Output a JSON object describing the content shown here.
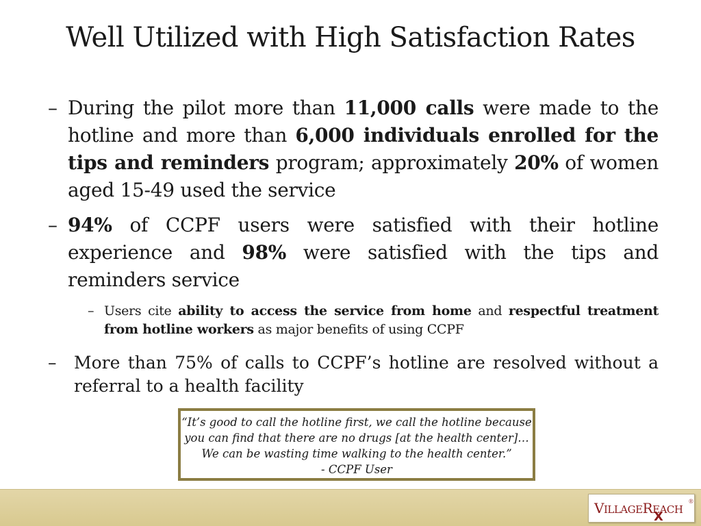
{
  "slide": {
    "title": "Well Utilized with High Satisfaction Rates"
  },
  "bullets": {
    "dash": "–",
    "b1": {
      "t1": "During the pilot more than ",
      "t2": "11,000 calls",
      "t3": " were made to the hotline and more than ",
      "t4": "6,000 individuals enrolled for the tips and reminders",
      "t5": " program; approximately ",
      "t6": "20%",
      "t7": " of women aged 15-49 used the service"
    },
    "b2": {
      "t1": "94%",
      "t2": " of CCPF users were satisfied with their hotline experience and ",
      "t3": "98%",
      "t4": " were satisfied with the tips and reminders service"
    },
    "sub": {
      "t1": "Users cite ",
      "t2": "ability to access the service from home",
      "t3": " and ",
      "t4": "respectful treatment from hotline workers",
      "t5": " as major benefits of using CCPF"
    },
    "b3": {
      "text": "More than 75% of calls to CCPF’s hotline are resolved without a referral to a health facility"
    }
  },
  "quote": {
    "line1": "“It’s good to call the hotline first, we call the hotline because",
    "line2": "you can find that there are no drugs [at the health center]…",
    "line3": "We can be wasting time walking to the health center.”",
    "attribution": "- CCPF User"
  },
  "logo": {
    "part1": "V",
    "part2": "ILLAGE",
    "part3": "R",
    "part4": "EACH",
    "reg": "®",
    "mark": "X",
    "brand_color": "#8b1c1c"
  },
  "colors": {
    "quote_border": "#8b7d43",
    "footer_band": "#dccd97"
  }
}
